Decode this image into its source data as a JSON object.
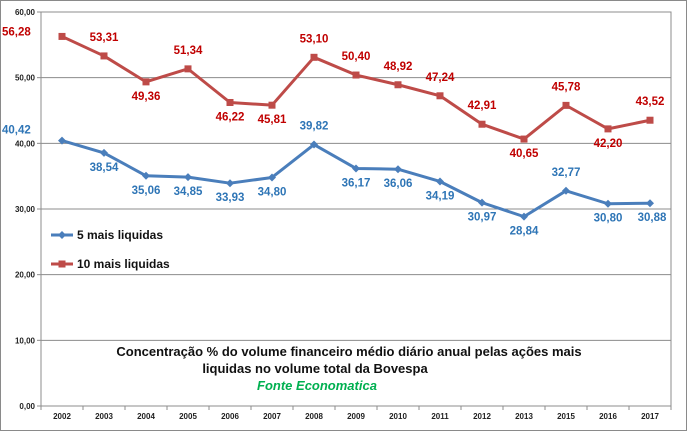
{
  "chart_data": {
    "type": "line",
    "categories": [
      "2002",
      "2003",
      "2004",
      "2005",
      "2006",
      "2007",
      "2008",
      "2009",
      "2010",
      "2011",
      "2012",
      "2013",
      "2015",
      "2016",
      "2017"
    ],
    "series": [
      {
        "name": "5 mais liquidas",
        "color": "#4a7ebb",
        "label_color": "#2e75b6",
        "values": [
          40.42,
          38.54,
          35.06,
          34.85,
          33.93,
          34.8,
          39.82,
          36.17,
          36.06,
          34.19,
          30.97,
          28.84,
          32.77,
          30.8,
          30.88
        ],
        "labels": [
          "40,42",
          "38,54",
          "35,06",
          "34,85",
          "33,93",
          "34,80",
          "39,82",
          "36,17",
          "36,06",
          "34,19",
          "30,97",
          "28,84",
          "32,77",
          "30,80",
          "30,88"
        ]
      },
      {
        "name": "10 mais  liquidas",
        "color": "#be4b48",
        "label_color": "#c00000",
        "values": [
          56.28,
          53.31,
          49.36,
          51.34,
          46.22,
          45.81,
          53.1,
          50.4,
          48.92,
          47.24,
          42.91,
          40.65,
          45.78,
          42.2,
          43.52
        ],
        "labels": [
          "56,28",
          "53,31",
          "49,36",
          "51,34",
          "46,22",
          "45,81",
          "53,10",
          "50,40",
          "48,92",
          "47,24",
          "42,91",
          "40,65",
          "45,78",
          "42,20",
          "43,52"
        ]
      }
    ],
    "ylim": [
      0,
      60
    ],
    "yticks": [
      "0,00",
      "10,00",
      "20,00",
      "30,00",
      "40,00",
      "50,00",
      "60,00"
    ],
    "grid": true,
    "legend_position": "left",
    "caption_line1": "Concentração % do volume financeiro médio diário anual  pelas ações mais",
    "caption_line2": "liquidas no volume total da Bovespa",
    "source": "Fonte Economatica",
    "source_color": "#00b050"
  }
}
